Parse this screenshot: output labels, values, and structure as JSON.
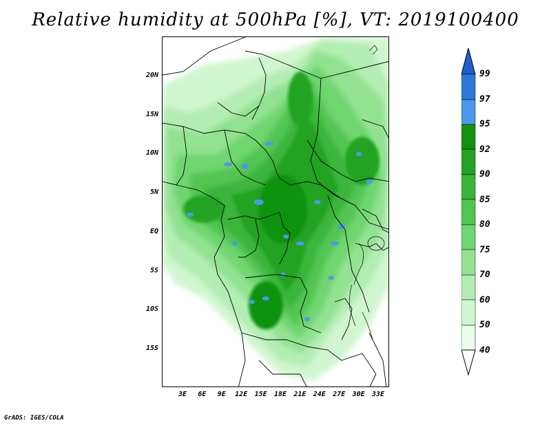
{
  "title": "Relative humidity at 500hPa [%], VT: 2019100400",
  "credit": "GrADS: IGES/COLA",
  "map": {
    "lat_ticks": [
      "20N",
      "15N",
      "10N",
      "5N",
      "EQ",
      "5S",
      "10S",
      "15S"
    ],
    "lat_values": [
      20,
      15,
      10,
      5,
      0,
      -5,
      -10,
      -15
    ],
    "lon_ticks": [
      "3E",
      "6E",
      "9E",
      "12E",
      "15E",
      "18E",
      "21E",
      "24E",
      "27E",
      "30E",
      "33E"
    ],
    "lon_values": [
      3,
      6,
      9,
      12,
      15,
      18,
      21,
      24,
      27,
      30,
      33
    ]
  },
  "colorbar": {
    "levels": [
      "40",
      "50",
      "60",
      "70",
      "75",
      "80",
      "85",
      "90",
      "92",
      "95",
      "97",
      "99"
    ],
    "colors": {
      "above_99": "#1f5fc8",
      "97_99": "#2e78d8",
      "95_97": "#4c98e8",
      "92_95": "#119311",
      "90_92": "#23a323",
      "85_90": "#3ab53a",
      "80_85": "#53c553",
      "75_80": "#70d670",
      "70_75": "#92e292",
      "60_70": "#b3edb3",
      "50_60": "#d0f6d0",
      "40_50": "#eafcea",
      "below_40": "#ffffff"
    }
  }
}
